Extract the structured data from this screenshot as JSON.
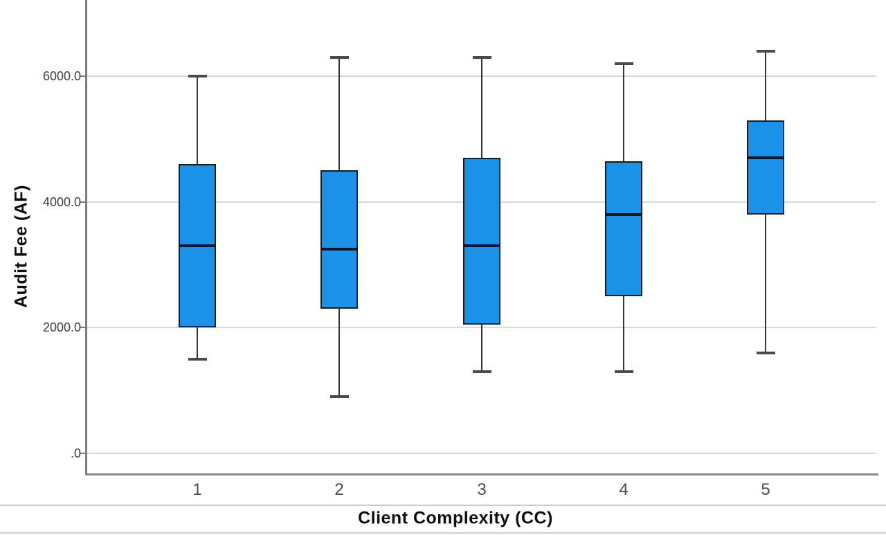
{
  "chart_data": {
    "type": "boxplot",
    "title": "",
    "xlabel": "Client Complexity (CC)",
    "ylabel": "Audit Fee (AF)",
    "categories": [
      "1",
      "2",
      "3",
      "4",
      "5"
    ],
    "y_tick_labels": [
      "6000.0",
      "4000.0",
      "2000.0",
      ".0"
    ],
    "y_tick_values": [
      6000,
      4000,
      2000,
      0
    ],
    "ylim": [
      0,
      7200
    ],
    "grid": "horizontal",
    "legend": "none",
    "series": [
      {
        "category": "1",
        "min": 1500,
        "q1": 2000,
        "median": 3300,
        "q3": 4600,
        "max": 6000
      },
      {
        "category": "2",
        "min": 900,
        "q1": 2300,
        "median": 3250,
        "q3": 4500,
        "max": 6300
      },
      {
        "category": "3",
        "min": 1300,
        "q1": 2050,
        "median": 3300,
        "q3": 4700,
        "max": 6300
      },
      {
        "category": "4",
        "min": 1300,
        "q1": 2500,
        "median": 3800,
        "q3": 4650,
        "max": 6200
      },
      {
        "category": "5",
        "min": 1600,
        "q1": 3800,
        "median": 4700,
        "q3": 5300,
        "max": 6400
      }
    ],
    "colors": {
      "box_fill": "#1992e8",
      "box_border": "#0e1d2b",
      "median": "#081523",
      "whisker": "#333333",
      "gridline": "#d9d9d9",
      "axis": "#7d7d7d",
      "tick_text": "#3d3d3d",
      "title_text": "#0d0d0d"
    }
  }
}
